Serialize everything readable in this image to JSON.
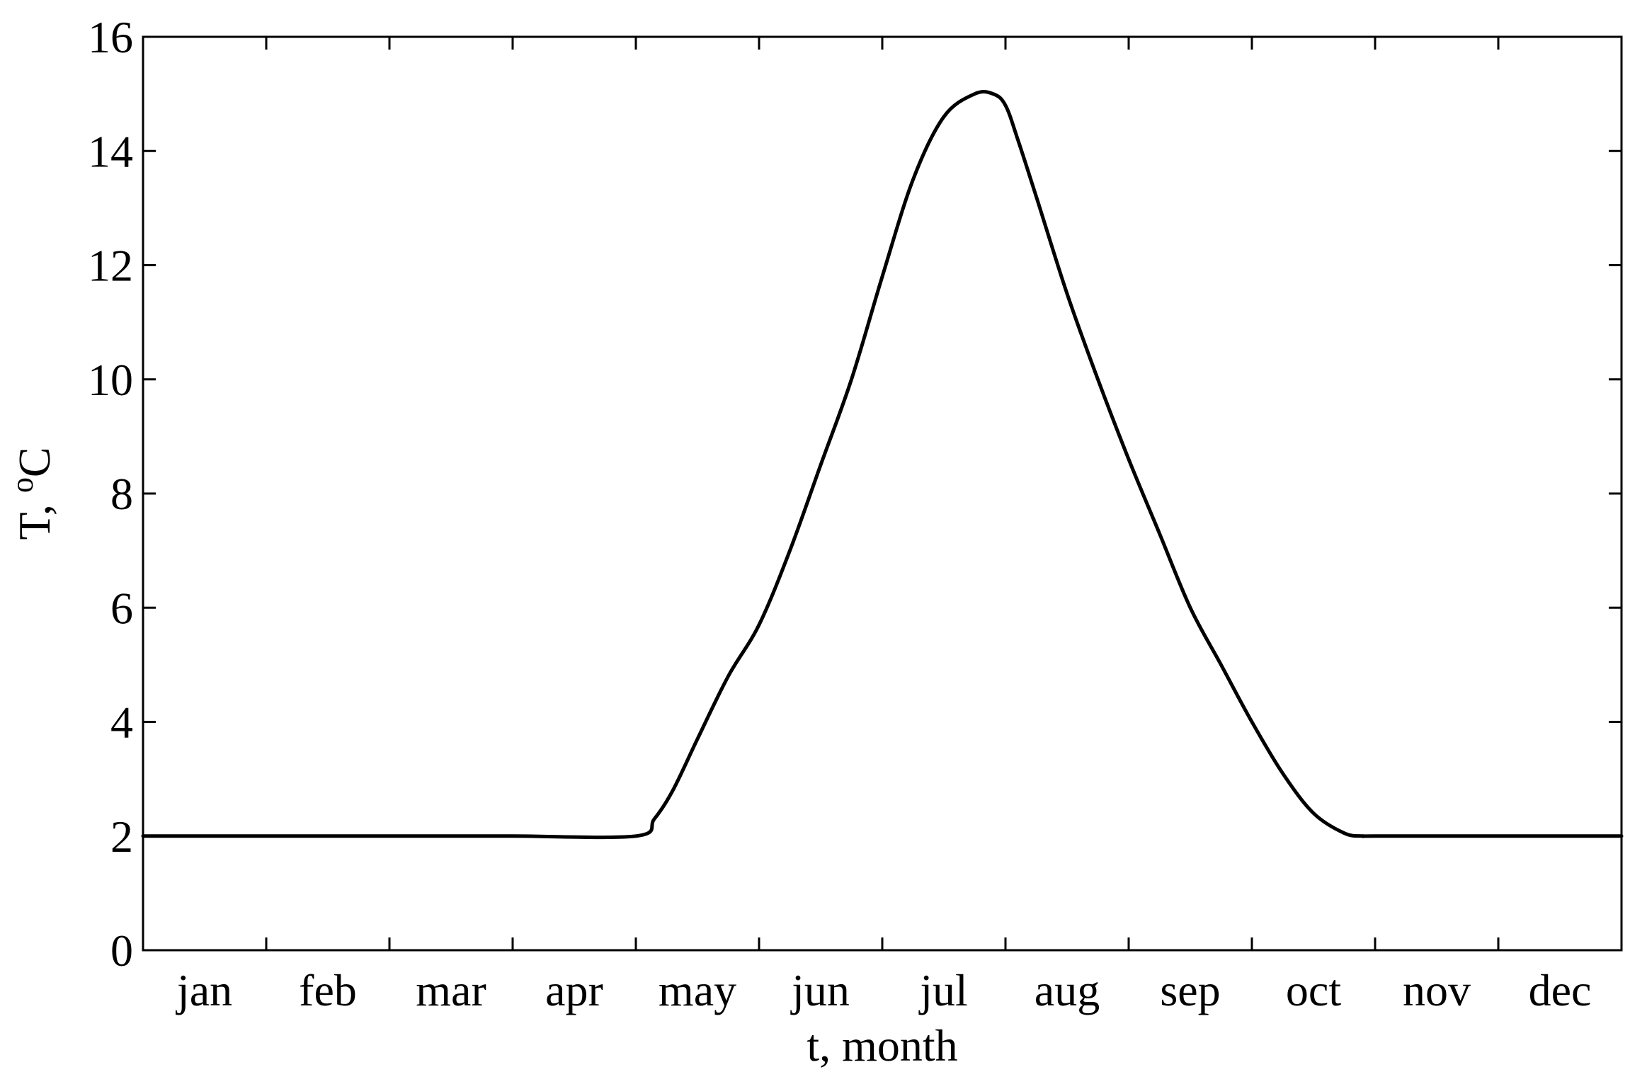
{
  "chart_data": {
    "type": "line",
    "xlabel": "t, month",
    "ylabel_main": "T, ",
    "ylabel_sup": "o",
    "ylabel_unit": "C",
    "ylim": [
      0,
      16
    ],
    "yticks": [
      0,
      2,
      4,
      6,
      8,
      10,
      12,
      14,
      16
    ],
    "ytick_labels": [
      "0",
      "2",
      "4",
      "6",
      "8",
      "10",
      "12",
      "14",
      "16"
    ],
    "xlim": [
      0,
      12
    ],
    "categories": [
      "jan",
      "feb",
      "mar",
      "apr",
      "may",
      "jun",
      "jul",
      "aug",
      "sep",
      "oct",
      "nov",
      "dec"
    ],
    "grid": false,
    "colors": {
      "line": "#000000",
      "axes": "#000000",
      "background": "#ffffff"
    },
    "series": [
      {
        "x": [
          0,
          1,
          2,
          3,
          4.0,
          4.15,
          4.3,
          4.5,
          4.75,
          5.0,
          5.25,
          5.5,
          5.75,
          6.0,
          6.25,
          6.5,
          6.75,
          6.9,
          7.0,
          7.1,
          7.25,
          7.5,
          7.75,
          8.0,
          8.25,
          8.5,
          8.75,
          9.0,
          9.25,
          9.5,
          9.75,
          9.9,
          10.0,
          11,
          12
        ],
        "y": [
          2,
          2,
          2,
          2,
          2.0,
          2.3,
          2.8,
          3.7,
          4.8,
          5.7,
          7.0,
          8.5,
          10.0,
          11.8,
          13.5,
          14.6,
          15.0,
          15.0,
          14.8,
          14.2,
          13.2,
          11.5,
          10.0,
          8.6,
          7.3,
          6.0,
          5.0,
          4.0,
          3.1,
          2.4,
          2.05,
          2.0,
          2.0,
          2,
          2
        ]
      }
    ]
  }
}
